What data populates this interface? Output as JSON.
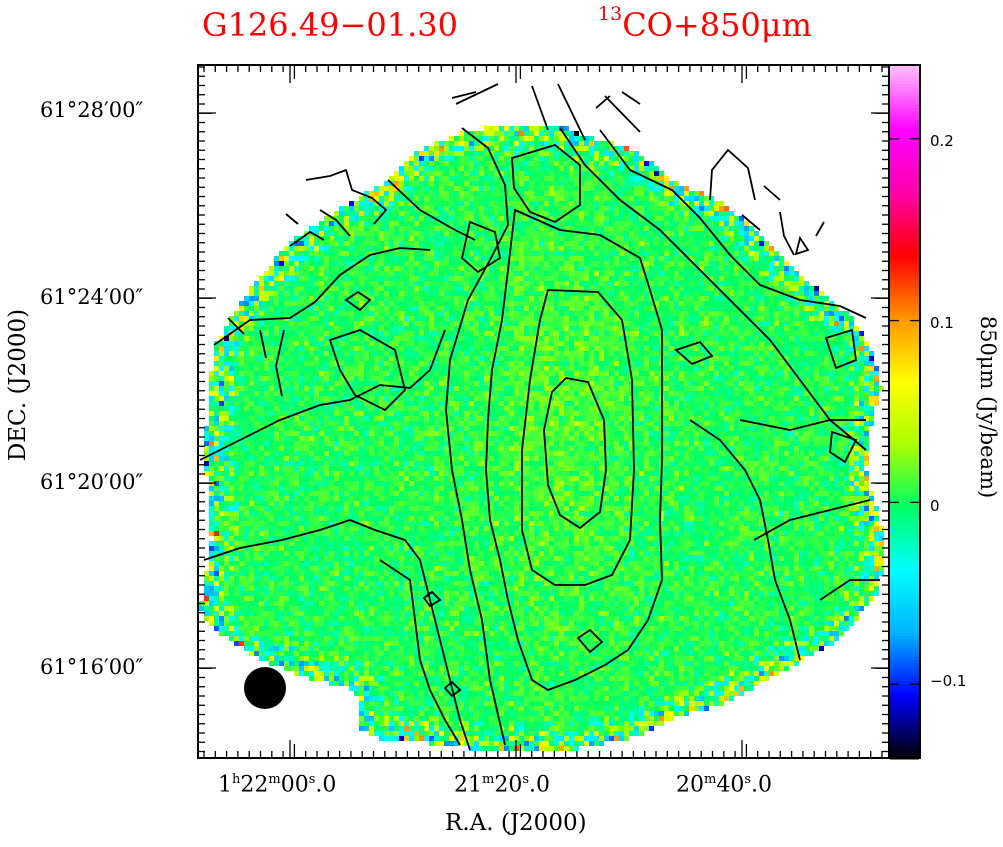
{
  "header": {
    "source_name": "G126.49−01.30",
    "tracer_sup": "13",
    "tracer_rest": "CO+850μm"
  },
  "axes": {
    "xlabel": "R.A. (J2000)",
    "ylabel": "DEC. (J2000)",
    "colorbar_label": "850μm (Jy/beam)"
  },
  "chart_data": {
    "type": "heatmap",
    "title": "G126.49−01.30  13CO+850μm",
    "xlabel": "R.A. (J2000)",
    "ylabel": "DEC. (J2000)",
    "colorbar": {
      "label": "850μm (Jy/beam)",
      "range": [
        -0.14,
        0.24
      ],
      "ticks": [
        {
          "value": 0.2,
          "label": "0.2"
        },
        {
          "value": 0.1,
          "label": "0.1"
        },
        {
          "value": 0.0,
          "label": "0"
        },
        {
          "value": -0.1,
          "label": "−0.1"
        }
      ],
      "colors": [
        "#000000",
        "#0000ff",
        "#00b4ff",
        "#00ffff",
        "#00ff64",
        "#aaff00",
        "#ffff00",
        "#ff9600",
        "#ff0000",
        "#ff00aa",
        "#ff00ff",
        "#ffbbff"
      ]
    },
    "x_ticks": [
      {
        "h": "1",
        "hs": "h",
        "m": "22",
        "ms": "m",
        "s": "00",
        "ss": "s",
        "frac": ".0"
      },
      {
        "h": "",
        "hs": "",
        "m": "21",
        "ms": "m",
        "s": "20",
        "ss": "s",
        "frac": ".0"
      },
      {
        "h": "",
        "hs": "",
        "m": "20",
        "ms": "m",
        "s": "40",
        "ss": "s",
        "frac": ".0"
      }
    ],
    "x_range_sec_ra": [
      1323,
      1272.5
    ],
    "y_ticks": [
      {
        "label": "61°28′00″",
        "value_arcmin": 28
      },
      {
        "label": "61°24′00″",
        "value_arcmin": 24
      },
      {
        "label": "61°20′00″",
        "value_arcmin": 20
      },
      {
        "label": "61°16′00″",
        "value_arcmin": 16
      }
    ],
    "y_range_arcmin": [
      14.1,
      29.2
    ],
    "contours": "13CO integrated intensity",
    "beam": "filled-circle",
    "map_noise_mean_jy_beam": 0.0
  }
}
